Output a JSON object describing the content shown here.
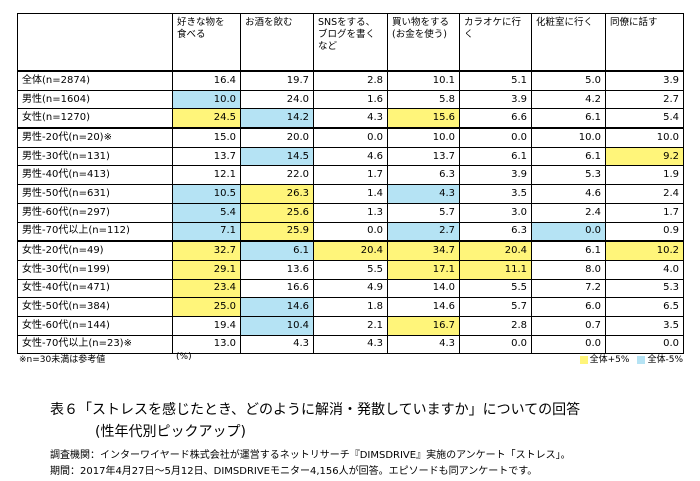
{
  "table": {
    "header": [
      "",
      "好きな物を\n食べる",
      "お酒を飲む",
      "SNSをする、\nブログを書く\nなど",
      "買い物をする\n(お金を使う)",
      "カラオケに行く",
      "化粧室に行く",
      "同僚に話す"
    ],
    "groups": [
      {
        "rows": [
          {
            "label": "全体(n=2874)",
            "cells": [
              "16.4",
              "19.7",
              "2.8",
              "10.1",
              "5.1",
              "5.0",
              "3.9"
            ],
            "colors": [
              null,
              null,
              null,
              null,
              null,
              null,
              null
            ]
          },
          {
            "label": "男性(n=1604)",
            "cells": [
              "10.0",
              "24.0",
              "1.6",
              "5.8",
              "3.9",
              "4.2",
              "2.7"
            ],
            "colors": [
              "#b5e3f4",
              null,
              null,
              null,
              null,
              null,
              null
            ]
          },
          {
            "label": "女性(n=1270)",
            "cells": [
              "24.5",
              "14.2",
              "4.3",
              "15.6",
              "6.6",
              "6.1",
              "5.4"
            ],
            "colors": [
              "#fff57a",
              "#b5e3f4",
              null,
              "#fff57a",
              null,
              null,
              null
            ]
          }
        ]
      },
      {
        "rows": [
          {
            "label": "男性-20代(n=20)※",
            "cells": [
              "15.0",
              "20.0",
              "0.0",
              "10.0",
              "0.0",
              "10.0",
              "10.0"
            ],
            "colors": [
              null,
              null,
              null,
              null,
              null,
              null,
              null
            ]
          },
          {
            "label": "男性-30代(n=131)",
            "cells": [
              "13.7",
              "14.5",
              "4.6",
              "13.7",
              "6.1",
              "6.1",
              "9.2"
            ],
            "colors": [
              null,
              "#b5e3f4",
              null,
              null,
              null,
              null,
              "#fff57a"
            ]
          },
          {
            "label": "男性-40代(n=413)",
            "cells": [
              "12.1",
              "22.0",
              "1.7",
              "6.3",
              "3.9",
              "5.3",
              "1.9"
            ],
            "colors": [
              null,
              null,
              null,
              null,
              null,
              null,
              null
            ]
          },
          {
            "label": "男性-50代(n=631)",
            "cells": [
              "10.5",
              "26.3",
              "1.4",
              "4.3",
              "3.5",
              "4.6",
              "2.4"
            ],
            "colors": [
              "#b5e3f4",
              "#fff57a",
              null,
              "#b5e3f4",
              null,
              null,
              null
            ]
          },
          {
            "label": "男性-60代(n=297)",
            "cells": [
              "5.4",
              "25.6",
              "1.3",
              "5.7",
              "3.0",
              "2.4",
              "1.7"
            ],
            "colors": [
              "#b5e3f4",
              "#fff57a",
              null,
              null,
              null,
              null,
              null
            ]
          },
          {
            "label": "男性-70代以上(n=112)",
            "cells": [
              "7.1",
              "25.9",
              "0.0",
              "2.7",
              "6.3",
              "0.0",
              "0.9"
            ],
            "colors": [
              "#b5e3f4",
              "#fff57a",
              null,
              "#b5e3f4",
              null,
              "#b5e3f4",
              null
            ]
          }
        ]
      },
      {
        "rows": [
          {
            "label": "女性-20代(n=49)",
            "cells": [
              "32.7",
              "6.1",
              "20.4",
              "34.7",
              "20.4",
              "6.1",
              "10.2"
            ],
            "colors": [
              "#fff57a",
              "#b5e3f4",
              "#fff57a",
              "#fff57a",
              "#fff57a",
              null,
              "#fff57a"
            ]
          },
          {
            "label": "女性-30代(n=199)",
            "cells": [
              "29.1",
              "13.6",
              "5.5",
              "17.1",
              "11.1",
              "8.0",
              "4.0"
            ],
            "colors": [
              "#fff57a",
              null,
              null,
              "#fff57a",
              "#fff57a",
              null,
              null
            ]
          },
          {
            "label": "女性-40代(n=471)",
            "cells": [
              "23.4",
              "16.6",
              "4.9",
              "14.0",
              "5.5",
              "7.2",
              "5.3"
            ],
            "colors": [
              "#fff57a",
              null,
              null,
              null,
              null,
              null,
              null
            ]
          },
          {
            "label": "女性-50代(n=384)",
            "cells": [
              "25.0",
              "14.6",
              "1.8",
              "14.6",
              "5.7",
              "6.0",
              "6.5"
            ],
            "colors": [
              "#fff57a",
              "#b5e3f4",
              null,
              null,
              null,
              null,
              null
            ]
          },
          {
            "label": "女性-60代(n=144)",
            "cells": [
              "19.4",
              "10.4",
              "2.1",
              "16.7",
              "2.8",
              "0.7",
              "3.5"
            ],
            "colors": [
              null,
              "#b5e3f4",
              null,
              "#fff57a",
              null,
              null,
              null
            ]
          },
          {
            "label": "女性-70代以上(n=23)※",
            "cells": [
              "13.0",
              "4.3",
              "4.3",
              "4.3",
              "0.0",
              "0.0",
              "0.0"
            ],
            "colors": [
              null,
              null,
              null,
              null,
              null,
              null,
              null
            ]
          }
        ]
      }
    ],
    "note": "※n=30未満は参考値",
    "unit": "(%)",
    "legend": [
      {
        "label": "全体+5%",
        "color": "#fff57a"
      },
      {
        "label": "全体-5%",
        "color": "#b5e3f4"
      }
    ]
  },
  "caption": {
    "line1": "表６「ストレスを感じたとき、どのように解消・発散していますか」についての回答",
    "line2": "(性年代別ピックアップ)"
  },
  "source": {
    "line1": "調査機関：インターワイヤード株式会社が運営するネットリサーチ『DIMSDRIVE』実施のアンケート「ストレス」。",
    "line2": "期間：2017年4月27日～5月12日、DIMSDRIVEモニター4,156人が回答。エピソードも同アンケートです。"
  }
}
